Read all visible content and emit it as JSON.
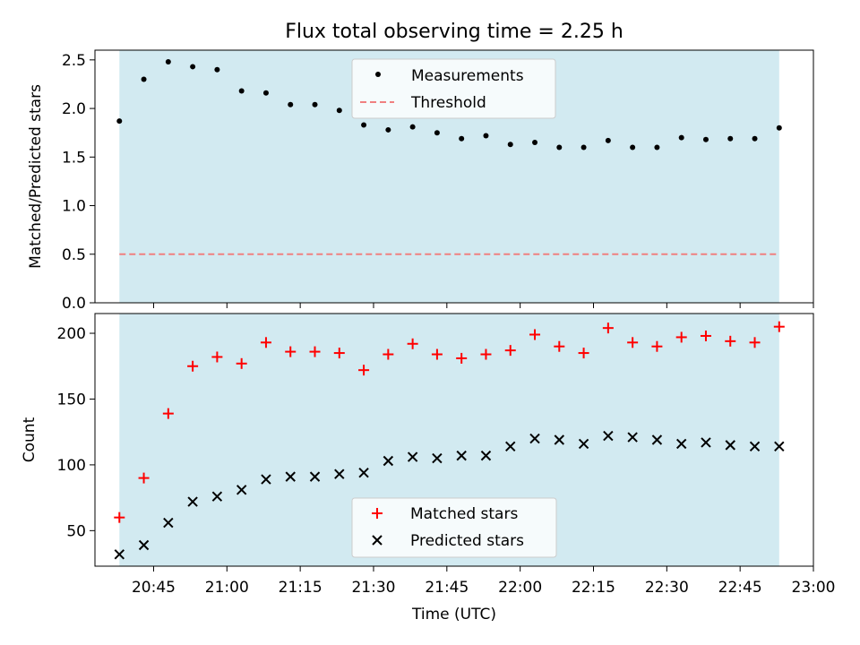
{
  "figure": {
    "title": "Flux total observing time = 2.25 h",
    "xlabel": "Time (UTC)"
  },
  "colors": {
    "band": "#add8e6",
    "measurements": "#000000",
    "threshold": "#f08080",
    "matched": "#ff0000",
    "predicted": "#000000"
  },
  "chart_data": [
    {
      "type": "scatter",
      "ylabel": "Matched/Predicted stars",
      "ylim": [
        0,
        2.6
      ],
      "yticks": [
        0,
        0.5,
        1.0,
        1.5,
        2.0,
        2.5
      ],
      "ytick_labels": [
        "0.0",
        "0.5",
        "1.0",
        "1.5",
        "2.0",
        "2.5"
      ],
      "observing_window": {
        "start": "20:38",
        "end": "22:53"
      },
      "legend_position": "top-center",
      "series": [
        {
          "name": "Measurements",
          "marker": "dot",
          "x": [
            "20:38",
            "20:43",
            "20:48",
            "20:53",
            "20:58",
            "21:03",
            "21:08",
            "21:13",
            "21:18",
            "21:23",
            "21:28",
            "21:33",
            "21:38",
            "21:43",
            "21:48",
            "21:53",
            "21:58",
            "22:03",
            "22:08",
            "22:13",
            "22:18",
            "22:23",
            "22:28",
            "22:33",
            "22:38",
            "22:43",
            "22:48",
            "22:53"
          ],
          "y": [
            1.87,
            2.3,
            2.48,
            2.43,
            2.4,
            2.18,
            2.16,
            2.04,
            2.04,
            1.98,
            1.83,
            1.78,
            1.81,
            1.75,
            1.69,
            1.72,
            1.63,
            1.65,
            1.6,
            1.6,
            1.67,
            1.6,
            1.6,
            1.7,
            1.68,
            1.69,
            1.69,
            1.8
          ]
        },
        {
          "name": "Threshold",
          "style": "dashed",
          "x": [
            "20:38",
            "22:53"
          ],
          "y": [
            0.5,
            0.5
          ]
        }
      ]
    },
    {
      "type": "scatter",
      "xlabel": "Time (UTC)",
      "ylabel": "Count",
      "ylim": [
        23,
        215
      ],
      "yticks": [
        50,
        100,
        150,
        200
      ],
      "xlim": [
        "20:33",
        "23:00"
      ],
      "xticks": [
        "20:45",
        "21:00",
        "21:15",
        "21:30",
        "21:45",
        "22:00",
        "22:15",
        "22:30",
        "22:45",
        "23:00"
      ],
      "observing_window": {
        "start": "20:38",
        "end": "22:53"
      },
      "legend_position": "bottom-center",
      "series": [
        {
          "name": "Matched stars",
          "marker": "plus",
          "x": [
            "20:38",
            "20:43",
            "20:48",
            "20:53",
            "20:58",
            "21:03",
            "21:08",
            "21:13",
            "21:18",
            "21:23",
            "21:28",
            "21:33",
            "21:38",
            "21:43",
            "21:48",
            "21:53",
            "21:58",
            "22:03",
            "22:08",
            "22:13",
            "22:18",
            "22:23",
            "22:28",
            "22:33",
            "22:38",
            "22:43",
            "22:48",
            "22:53"
          ],
          "y": [
            60,
            90,
            139,
            175,
            182,
            177,
            193,
            186,
            186,
            185,
            172,
            184,
            192,
            184,
            181,
            184,
            187,
            199,
            190,
            185,
            204,
            193,
            190,
            197,
            198,
            194,
            193,
            205
          ]
        },
        {
          "name": "Predicted stars",
          "marker": "x",
          "x": [
            "20:38",
            "20:43",
            "20:48",
            "20:53",
            "20:58",
            "21:03",
            "21:08",
            "21:13",
            "21:18",
            "21:23",
            "21:28",
            "21:33",
            "21:38",
            "21:43",
            "21:48",
            "21:53",
            "21:58",
            "22:03",
            "22:08",
            "22:13",
            "22:18",
            "22:23",
            "22:28",
            "22:33",
            "22:38",
            "22:43",
            "22:48",
            "22:53"
          ],
          "y": [
            32,
            39,
            56,
            72,
            76,
            81,
            89,
            91,
            91,
            93,
            94,
            103,
            106,
            105,
            107,
            107,
            114,
            120,
            119,
            116,
            122,
            121,
            119,
            116,
            117,
            115,
            114,
            114
          ]
        }
      ]
    }
  ]
}
